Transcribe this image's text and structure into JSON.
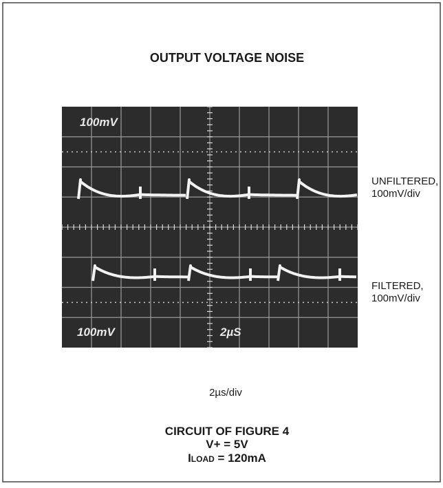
{
  "title": "OUTPUT VOLTAGE NOISE",
  "scope": {
    "top_left_label": "100mV",
    "bottom_left_label": "100mV",
    "bottom_center_label": "2µS"
  },
  "traces": [
    {
      "label_line1": "UNFILTERED,",
      "label_line2": "100mV/div"
    },
    {
      "label_line1": "FILTERED,",
      "label_line2": "100mV/div"
    }
  ],
  "x_label": "2µs/div",
  "caption": {
    "line1": "CIRCUIT OF FIGURE 4",
    "line2": "V+ = 5V",
    "line3_main": "I",
    "line3_sub": "LOAD",
    "line3_rest": " = 120mA"
  }
}
